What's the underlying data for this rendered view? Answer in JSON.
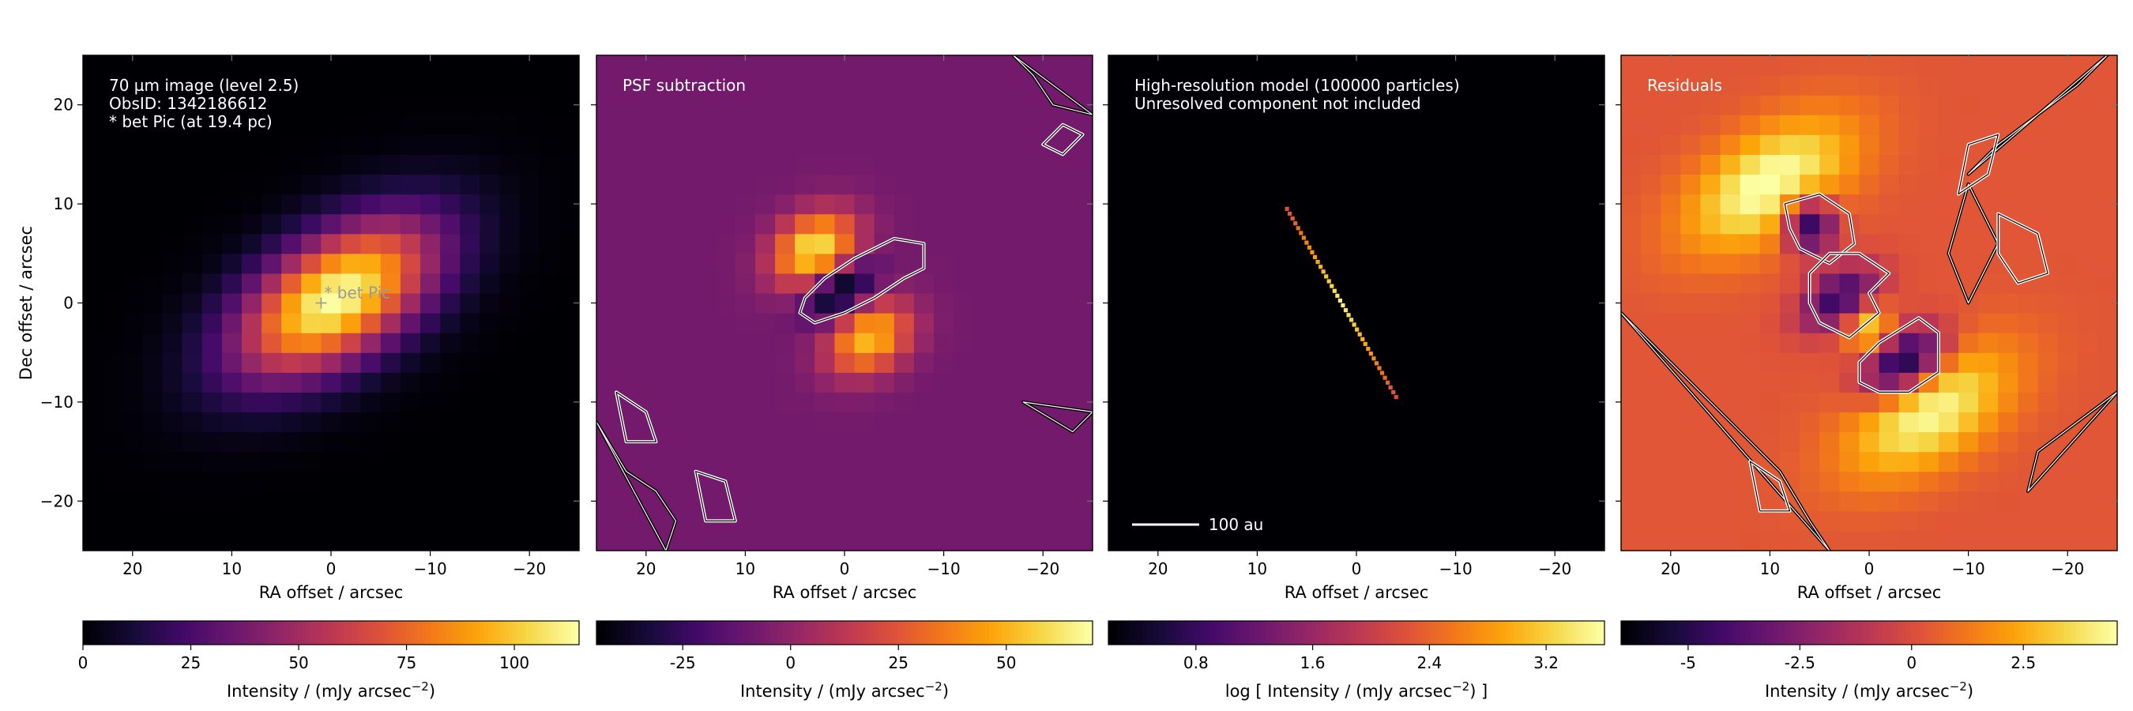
{
  "colors": {
    "colormap": "inferno",
    "contour_positive": "#ffffff",
    "contour_negative": "#000000",
    "annotation_text": "#ffffff",
    "star_label": "#9a9a9a"
  },
  "chart_data": [
    {
      "type": "heatmap",
      "title": "",
      "annotation_lines": [
        "70 µm image (level 2.5)",
        "ObsID: 1342186612",
        "* bet Pic (at 19.4 pc)"
      ],
      "star_label": "* bet Pic",
      "star_position": [
        1,
        0
      ],
      "xlabel": "RA offset / arcsec",
      "ylabel": "Dec offset / arcsec",
      "xlim": [
        25,
        -25
      ],
      "ylim": [
        -25,
        25
      ],
      "xticks": [
        20,
        10,
        0,
        -10,
        -20
      ],
      "yticks": [
        -20,
        -10,
        0,
        10,
        20
      ],
      "xtick_labels": [
        "20",
        "10",
        "0",
        "−10",
        "−20"
      ],
      "ytick_labels": [
        "−20",
        "−10",
        "0",
        "10",
        "20"
      ],
      "grid": false,
      "pixel_size_arcsec": 2,
      "sources": [
        {
          "x": -0.5,
          "y": 0.5,
          "sigma_major": 8.0,
          "sigma_minor": 4.2,
          "pa_deg": 57,
          "amplitude": 115
        }
      ],
      "contours": [],
      "colorbar": {
        "label": "Intensity / (mJy arcsec",
        "label_exp": "−2",
        "label_close": ")",
        "vmin": 0,
        "vmax": 115,
        "ticks": [
          0,
          25,
          50,
          75,
          100
        ],
        "tick_labels": [
          "0",
          "25",
          "50",
          "75",
          "100"
        ]
      }
    },
    {
      "type": "heatmap",
      "title": "",
      "annotation_lines": [
        "PSF subtraction"
      ],
      "xlabel": "RA offset / arcsec",
      "ylabel": "",
      "xlim": [
        25,
        -25
      ],
      "ylim": [
        -25,
        25
      ],
      "xticks": [
        20,
        10,
        0,
        -10,
        -20
      ],
      "xtick_labels": [
        "20",
        "10",
        "0",
        "−10",
        "−20"
      ],
      "grid": false,
      "pixel_size_arcsec": 2,
      "background_value": -8,
      "sources": [
        {
          "x": 3,
          "y": 5.5,
          "sigma_major": 3.2,
          "sigma_minor": 2.4,
          "pa_deg": 57,
          "amplitude": 70
        },
        {
          "x": -2.5,
          "y": -3.5,
          "sigma_major": 3.2,
          "sigma_minor": 2.4,
          "pa_deg": 57,
          "amplitude": 60
        },
        {
          "x": 0.5,
          "y": 1.2,
          "sigma_major": 2.6,
          "sigma_minor": 1.6,
          "pa_deg": 57,
          "amplitude": -45
        }
      ],
      "contours": [
        {
          "level": "positive",
          "points": [
            [
              -8,
              6
            ],
            [
              -5,
              6.5
            ],
            [
              -1,
              4.5
            ],
            [
              2,
              2.5
            ],
            [
              4,
              0.5
            ],
            [
              4.5,
              -1
            ],
            [
              3,
              -2
            ],
            [
              0,
              -1
            ],
            [
              -3,
              0.5
            ],
            [
              -6,
              2.5
            ],
            [
              -8,
              3.5
            ]
          ]
        },
        {
          "level": "negative",
          "points": [
            [
              25,
              -12
            ],
            [
              22,
              -17
            ],
            [
              19,
              -19
            ],
            [
              17,
              -22
            ],
            [
              18,
              -25
            ]
          ]
        },
        {
          "level": "negative",
          "points": [
            [
              -25,
              19
            ],
            [
              -21,
              20
            ],
            [
              -19,
              23
            ],
            [
              -17,
              25
            ]
          ]
        },
        {
          "level": "negative",
          "points": [
            [
              -18,
              -10
            ],
            [
              -23,
              -13
            ],
            [
              -25,
              -11
            ]
          ]
        },
        {
          "level": "positive",
          "points": [
            [
              23,
              -9
            ],
            [
              20,
              -11
            ],
            [
              19,
              -14
            ],
            [
              22,
              -14
            ]
          ]
        },
        {
          "level": "positive",
          "points": [
            [
              15,
              -17
            ],
            [
              12,
              -18
            ],
            [
              11,
              -22
            ],
            [
              14,
              -22
            ]
          ]
        },
        {
          "level": "positive",
          "points": [
            [
              -20,
              16
            ],
            [
              -22,
              18
            ],
            [
              -24,
              17
            ],
            [
              -22,
              15
            ]
          ]
        }
      ],
      "colorbar": {
        "label": "Intensity / (mJy arcsec",
        "label_exp": "−2",
        "label_close": ")",
        "vmin": -45,
        "vmax": 70,
        "ticks": [
          -25,
          0,
          25,
          50
        ],
        "tick_labels": [
          "-25",
          "0",
          "25",
          "50"
        ]
      }
    },
    {
      "type": "heatmap",
      "title": "",
      "annotation_lines": [
        "High-resolution model (100000 particles)",
        "Unresolved component not included"
      ],
      "scalebar_label": "100 au",
      "scalebar_length_arcsec": 5.2,
      "xlabel": "RA offset / arcsec",
      "ylabel": "",
      "xlim": [
        25,
        -25
      ],
      "ylim": [
        -25,
        25
      ],
      "xticks": [
        20,
        10,
        0,
        -10,
        -20
      ],
      "xtick_labels": [
        "20",
        "10",
        "0",
        "−10",
        "−20"
      ],
      "grid": false,
      "disk_model": {
        "x_start": 7,
        "y_start": 9.5,
        "x_end": -4,
        "y_end": -9.5,
        "log_peak": 3.5,
        "log_edge": 2.2
      },
      "contours": [],
      "colorbar": {
        "label": "log [ Intensity / (mJy arcsec",
        "label_exp": "−2",
        "label_close": ") ]",
        "vmin": 0.2,
        "vmax": 3.6,
        "ticks": [
          0.8,
          1.6,
          2.4,
          3.2
        ],
        "tick_labels": [
          "0.8",
          "1.6",
          "2.4",
          "3.2"
        ]
      }
    },
    {
      "type": "heatmap",
      "title": "",
      "annotation_lines": [
        "Residuals"
      ],
      "xlabel": "RA offset / arcsec",
      "ylabel": "",
      "xlim": [
        25,
        -25
      ],
      "ylim": [
        -25,
        25
      ],
      "xticks": [
        20,
        10,
        0,
        -10,
        -20
      ],
      "xtick_labels": [
        "20",
        "10",
        "0",
        "−10",
        "−20"
      ],
      "grid": false,
      "pixel_size_arcsec": 2,
      "background_value": 0.3,
      "sources": [
        {
          "x": 10,
          "y": 12,
          "sigma_major": 6.5,
          "sigma_minor": 3.5,
          "pa_deg": 57,
          "amplitude": 4.6
        },
        {
          "x": -6,
          "y": -11,
          "sigma_major": 6.5,
          "sigma_minor": 3.5,
          "pa_deg": 57,
          "amplitude": 4.2
        },
        {
          "x": 0,
          "y": -2.5,
          "sigma_major": 1.8,
          "sigma_minor": 1.6,
          "pa_deg": 0,
          "amplitude": 3.5
        },
        {
          "x": 6,
          "y": 8,
          "sigma_major": 2.0,
          "sigma_minor": 1.8,
          "pa_deg": 0,
          "amplitude": -6.0
        },
        {
          "x": 3,
          "y": 0.5,
          "sigma_major": 3.0,
          "sigma_minor": 1.8,
          "pa_deg": 57,
          "amplitude": -5.0
        },
        {
          "x": -3.5,
          "y": -6,
          "sigma_major": 3.2,
          "sigma_minor": 2.0,
          "pa_deg": 57,
          "amplitude": -6.5
        }
      ],
      "contours": [
        {
          "level": "positive",
          "points": [
            [
              8.5,
              10
            ],
            [
              5,
              11
            ],
            [
              2,
              9
            ],
            [
              1.5,
              6
            ],
            [
              4,
              4
            ],
            [
              7,
              5.5
            ],
            [
              8,
              7.5
            ]
          ]
        },
        {
          "level": "positive",
          "points": [
            [
              6,
              3
            ],
            [
              4,
              5
            ],
            [
              1,
              5
            ],
            [
              -2,
              3
            ],
            [
              0,
              1
            ],
            [
              -1,
              -1
            ],
            [
              2,
              -3.5
            ],
            [
              5,
              -2
            ],
            [
              6,
              0
            ]
          ]
        },
        {
          "level": "positive",
          "points": [
            [
              1,
              -6
            ],
            [
              -1,
              -4
            ],
            [
              -5,
              -1.5
            ],
            [
              -7,
              -3
            ],
            [
              -7,
              -7
            ],
            [
              -4,
              -9
            ],
            [
              -1,
              -9
            ],
            [
              1,
              -8
            ]
          ]
        },
        {
          "level": "negative",
          "points": [
            [
              25,
              -1
            ],
            [
              21,
              -5
            ],
            [
              17,
              -9
            ],
            [
              13,
              -13
            ],
            [
              9,
              -17
            ],
            [
              6,
              -22
            ],
            [
              4,
              -25
            ]
          ]
        },
        {
          "level": "negative",
          "points": [
            [
              -10,
              13
            ],
            [
              -13,
              16
            ],
            [
              -17,
              19
            ],
            [
              -21,
              22
            ],
            [
              -24,
              25
            ]
          ]
        },
        {
          "level": "negative",
          "points": [
            [
              -25,
              -9
            ],
            [
              -21,
              -12
            ],
            [
              -17,
              -15
            ],
            [
              -16,
              -19
            ]
          ]
        },
        {
          "level": "negative",
          "points": [
            [
              -10,
              0
            ],
            [
              -8,
              5
            ],
            [
              -10,
              12
            ],
            [
              -13,
              6
            ]
          ]
        },
        {
          "level": "positive",
          "points": [
            [
              -13,
              9
            ],
            [
              -17,
              7
            ],
            [
              -18,
              3
            ],
            [
              -15,
              2
            ],
            [
              -13,
              5
            ]
          ]
        },
        {
          "level": "positive",
          "points": [
            [
              -9,
              11
            ],
            [
              -12,
              13
            ],
            [
              -13,
              17
            ],
            [
              -10,
              16
            ]
          ]
        },
        {
          "level": "positive",
          "points": [
            [
              12,
              -16
            ],
            [
              9,
              -18
            ],
            [
              8,
              -21
            ],
            [
              11,
              -21
            ]
          ]
        }
      ],
      "colorbar": {
        "label": "Intensity / (mJy arcsec",
        "label_exp": "−2",
        "label_close": ")",
        "vmin": -6.5,
        "vmax": 4.6,
        "ticks": [
          -5,
          -2.5,
          0,
          2.5
        ],
        "tick_labels": [
          "-5",
          "-2.5",
          "0",
          "2.5"
        ]
      }
    }
  ]
}
